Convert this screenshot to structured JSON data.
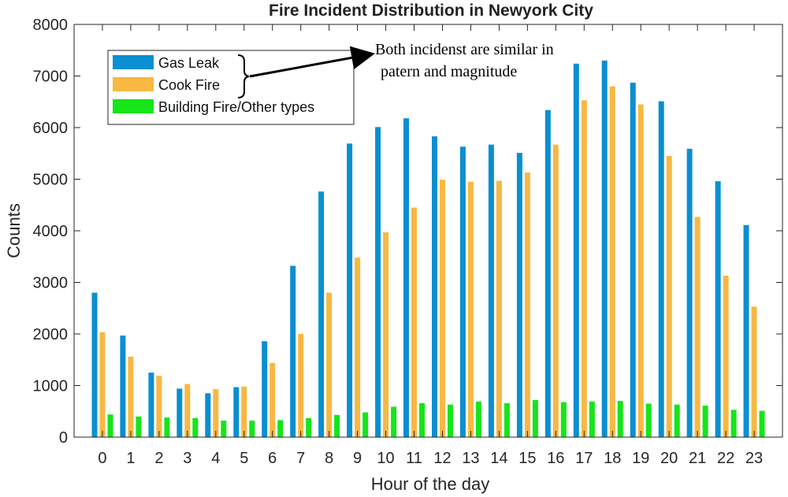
{
  "chart_data": {
    "type": "bar",
    "title": "Fire Incident Distribution in Newyork City",
    "xlabel": "Hour of the day",
    "ylabel": "Counts",
    "ylim": [
      0,
      8000
    ],
    "yticks": [
      "0",
      "1000",
      "2000",
      "3000",
      "4000",
      "5000",
      "6000",
      "7000",
      "8000"
    ],
    "categories": [
      "0",
      "1",
      "2",
      "3",
      "4",
      "5",
      "6",
      "7",
      "8",
      "9",
      "10",
      "11",
      "12",
      "13",
      "14",
      "15",
      "16",
      "17",
      "18",
      "19",
      "20",
      "21",
      "22",
      "23"
    ],
    "series": [
      {
        "name": "Gas Leak",
        "color": "#0a8fd0",
        "values": [
          2800,
          1970,
          1250,
          940,
          850,
          970,
          1860,
          3320,
          4760,
          5690,
          6010,
          6180,
          5830,
          5630,
          5670,
          5510,
          6340,
          7240,
          7300,
          6870,
          6510,
          5590,
          4960,
          4110
        ]
      },
      {
        "name": "Cook Fire",
        "color": "#f8b842",
        "values": [
          2030,
          1560,
          1190,
          1030,
          930,
          980,
          1440,
          2000,
          2800,
          3480,
          3970,
          4450,
          4990,
          4950,
          4970,
          5130,
          5670,
          6530,
          6800,
          6450,
          5450,
          4270,
          3130,
          2530
        ]
      },
      {
        "name": "Building Fire/Other types",
        "color": "#16e51a",
        "values": [
          440,
          400,
          380,
          370,
          320,
          320,
          330,
          370,
          430,
          480,
          590,
          660,
          630,
          690,
          660,
          720,
          680,
          690,
          700,
          650,
          630,
          610,
          530,
          510
        ]
      }
    ],
    "annotation": {
      "line1": "Both incidenst are similar in",
      "line2": "patern and magnitude"
    },
    "legend_position": "top-left",
    "grid": false
  }
}
